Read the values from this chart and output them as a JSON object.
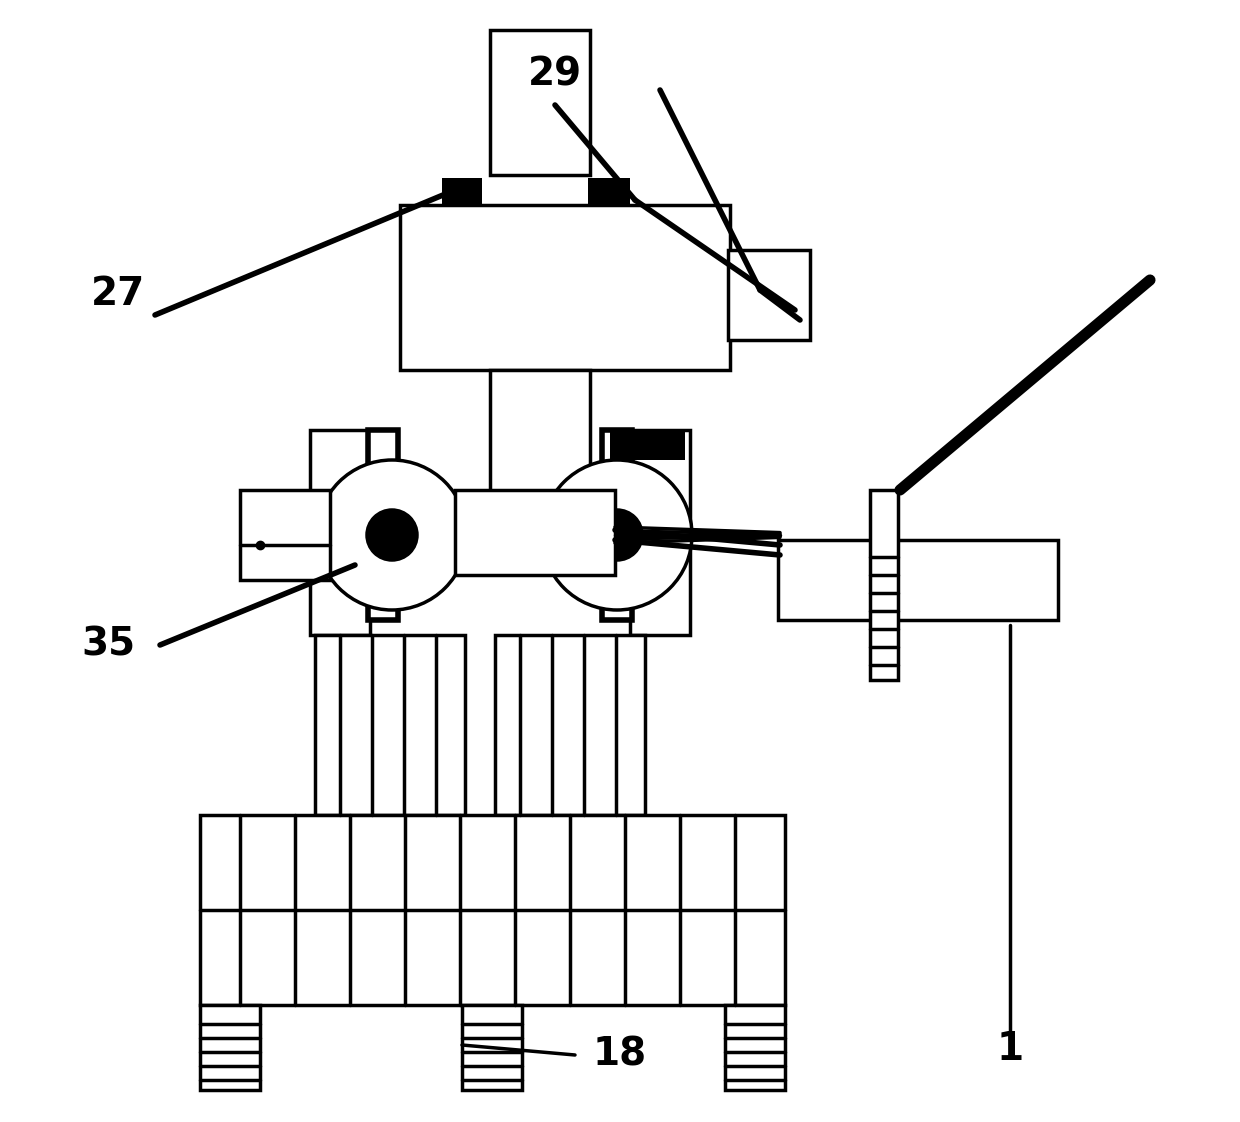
{
  "bg_color": "#ffffff",
  "line_color": "#000000",
  "label_fontsize": 28,
  "lw": 2.5,
  "lw_thick": 4.0,
  "lw_arrow": 3.0
}
